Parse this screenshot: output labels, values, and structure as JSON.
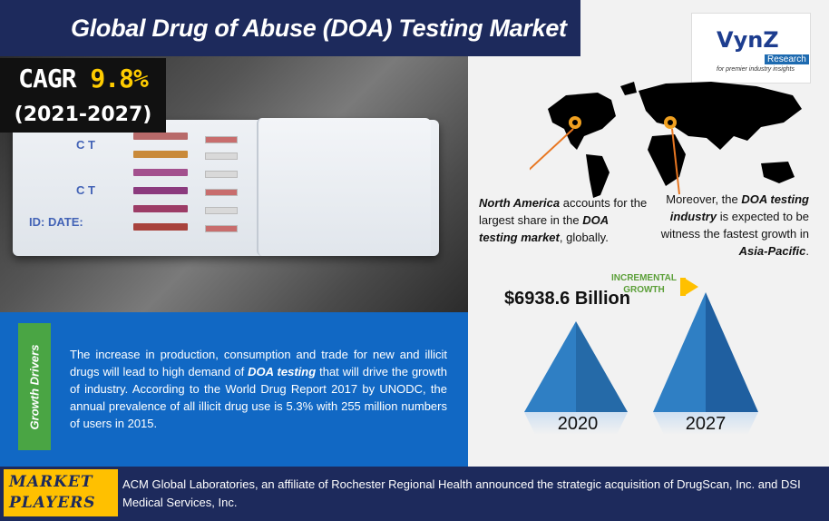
{
  "header": {
    "title": "Global Drug of Abuse (DOA) Testing Market"
  },
  "cagr": {
    "prefix": "CAGR",
    "value": "9.8%",
    "period": "(2021-2027)"
  },
  "logo": {
    "brand": "VynZ",
    "sub": "Research",
    "tagline": "for premier industry insights"
  },
  "regions": {
    "north_america": {
      "bold1": "North America",
      "text1": " accounts for the largest share in the ",
      "bold2": "DOA testing market",
      "text2": ", globally."
    },
    "asia_pacific": {
      "text1": "Moreover, the ",
      "bold1": "DOA testing industry",
      "text2": " is expected to be witness the fastest growth in ",
      "bold2": "Asia-Pacific",
      "text3": "."
    }
  },
  "growth": {
    "side_label": "Growth Drivers",
    "text_a": "The increase in production, consumption and trade for new and illicit drugs will lead to high demand of ",
    "bold": "DOA testing",
    "text_b": " that will drive the growth of industry. According to the World Drug Report 2017 by UNODC, the annual prevalence of all illicit drug use is 5.3% with 255 million numbers of users in 2015."
  },
  "market_value": {
    "value": "$6938.6 Billion",
    "incremental_label": "INCREMENTAL GROWTH",
    "year_start": "2020",
    "year_end": "2027"
  },
  "market_players": {
    "label": "MARKET PLAYERS",
    "description": "ACM Global Laboratories, an affiliate of Rochester Regional Health announced the strategic acquisition of DrugScan, Inc. and DSI Medical Services, Inc."
  },
  "colors": {
    "navy": "#1d2a5c",
    "blue": "#1168c4",
    "green": "#4aa544",
    "yellow": "#ffc000",
    "orange": "#e87722"
  }
}
